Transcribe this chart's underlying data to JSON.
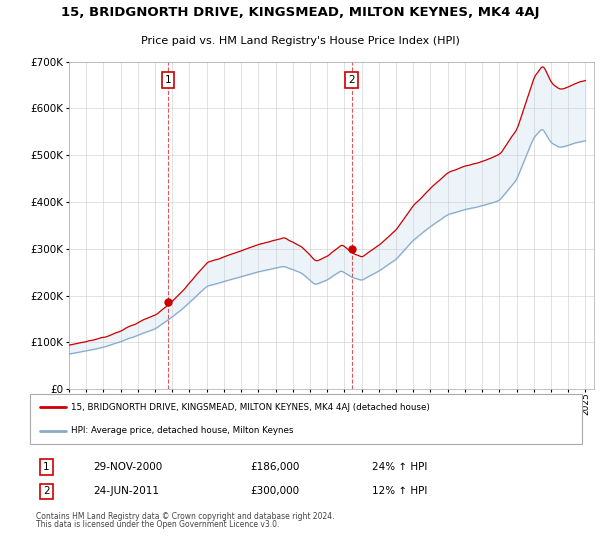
{
  "title": "15, BRIDGNORTH DRIVE, KINGSMEAD, MILTON KEYNES, MK4 4AJ",
  "subtitle": "Price paid vs. HM Land Registry's House Price Index (HPI)",
  "red_label": "15, BRIDGNORTH DRIVE, KINGSMEAD, MILTON KEYNES, MK4 4AJ (detached house)",
  "blue_label": "HPI: Average price, detached house, Milton Keynes",
  "transaction1_date": "29-NOV-2000",
  "transaction1_price": 186000,
  "transaction1_hpi": "24% ↑ HPI",
  "transaction2_date": "24-JUN-2011",
  "transaction2_price": 300000,
  "transaction2_hpi": "12% ↑ HPI",
  "footer": "Contains HM Land Registry data © Crown copyright and database right 2024.\nThis data is licensed under the Open Government Licence v3.0.",
  "ylim": [
    0,
    700000
  ],
  "yticks": [
    0,
    100000,
    200000,
    300000,
    400000,
    500000,
    600000,
    700000
  ],
  "red_color": "#cc0000",
  "blue_color": "#88aacc",
  "fill_color": "#cce0f0"
}
